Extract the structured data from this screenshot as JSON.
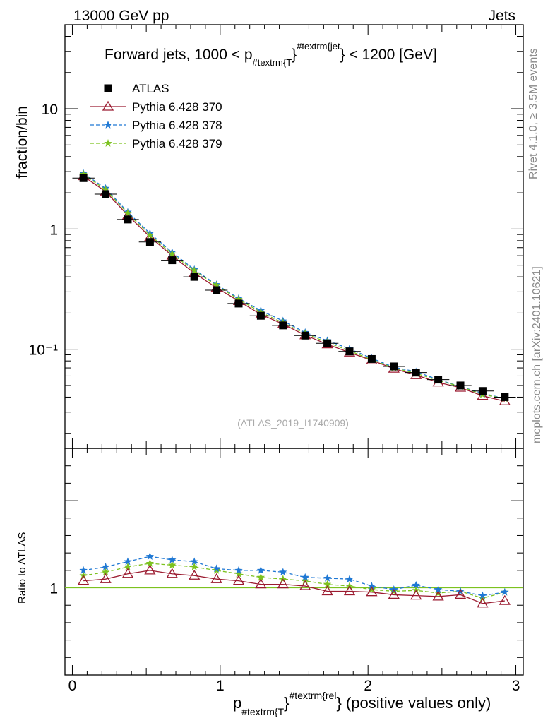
{
  "header": {
    "left": "13000 GeV pp",
    "right": "Jets"
  },
  "side": {
    "rivet": "Rivet 4.1.0, ≥ 3.5M events",
    "mcplots": "mcplots.cern.ch [arXiv:2401.10621]"
  },
  "chart_data": {
    "type": "line",
    "title": "Forward jets, 1000 < p",
    "title_sub": "#textrm{T",
    "title_sup": "#textrm{jet",
    "title_tail": " < 1200 [GeV]",
    "ylabel": "fraction/bin",
    "ratio_ylabel": "Ratio to ATLAS",
    "analysis_id": "(ATLAS_2019_I1740909)",
    "xlabel": {
      "main": "p",
      "sub": "#textrm{T",
      "sup": "#textrm{rel",
      "tail": " (positive values only)"
    },
    "yscale": "log",
    "ylim": [
      0.015,
      50
    ],
    "ratio_ylim": [
      0.5,
      1.8
    ],
    "xlim": [
      -0.05,
      3.05
    ],
    "x_ticks": [
      "0",
      "1",
      "2",
      "3"
    ],
    "y_ticks": [
      "10",
      "1",
      "10⁻¹"
    ],
    "ratio_ticks": [
      "1"
    ],
    "x": [
      0.075,
      0.225,
      0.375,
      0.525,
      0.675,
      0.825,
      0.975,
      1.125,
      1.275,
      1.425,
      1.575,
      1.725,
      1.875,
      2.025,
      2.175,
      2.325,
      2.475,
      2.625,
      2.775,
      2.925
    ],
    "series": [
      {
        "name": "ATLAS",
        "color": "#000000",
        "marker": "square",
        "values": [
          2.65,
          1.95,
          1.2,
          0.78,
          0.55,
          0.4,
          0.31,
          0.24,
          0.19,
          0.158,
          0.13,
          0.112,
          0.096,
          0.083,
          0.072,
          0.064,
          0.056,
          0.05,
          0.045,
          0.04
        ]
      },
      {
        "name": "Pythia 6.428 370",
        "color": "#9b1b30",
        "marker": "triangle",
        "dash": "",
        "values": [
          2.75,
          2.05,
          1.3,
          0.86,
          0.6,
          0.43,
          0.325,
          0.252,
          0.195,
          0.162,
          0.131,
          0.11,
          0.094,
          0.081,
          0.069,
          0.061,
          0.053,
          0.048,
          0.041,
          0.037
        ]
      },
      {
        "name": "Pythia 6.428 378",
        "color": "#1f78d4",
        "marker": "star",
        "dash": "5,3",
        "values": [
          2.9,
          2.18,
          1.38,
          0.92,
          0.64,
          0.46,
          0.345,
          0.265,
          0.21,
          0.172,
          0.138,
          0.118,
          0.101,
          0.084,
          0.071,
          0.065,
          0.056,
          0.049,
          0.043,
          0.039
        ]
      },
      {
        "name": "Pythia 6.428 379",
        "color": "#7cc21f",
        "marker": "star",
        "dash": "5,3",
        "values": [
          2.85,
          2.12,
          1.35,
          0.89,
          0.62,
          0.45,
          0.34,
          0.26,
          0.203,
          0.166,
          0.135,
          0.114,
          0.097,
          0.082,
          0.07,
          0.063,
          0.055,
          0.049,
          0.042,
          0.039
        ]
      }
    ],
    "ratio_series": [
      {
        "name": "Pythia 6.428 370",
        "values": [
          1.04,
          1.05,
          1.08,
          1.1,
          1.08,
          1.07,
          1.05,
          1.04,
          1.02,
          1.02,
          1.01,
          0.98,
          0.98,
          0.975,
          0.96,
          0.955,
          0.95,
          0.96,
          0.91,
          0.925
        ]
      },
      {
        "name": "Pythia 6.428 378",
        "values": [
          1.1,
          1.12,
          1.15,
          1.18,
          1.16,
          1.15,
          1.11,
          1.1,
          1.1,
          1.09,
          1.06,
          1.055,
          1.05,
          1.01,
          0.99,
          1.015,
          0.99,
          0.98,
          0.955,
          0.975
        ]
      },
      {
        "name": "Pythia 6.428 379",
        "values": [
          1.07,
          1.09,
          1.12,
          1.14,
          1.13,
          1.12,
          1.1,
          1.08,
          1.06,
          1.05,
          1.04,
          1.02,
          1.01,
          0.99,
          0.98,
          0.985,
          0.97,
          0.98,
          0.94,
          0.975
        ]
      }
    ],
    "ratio_reference_color": "#7cc21f"
  }
}
